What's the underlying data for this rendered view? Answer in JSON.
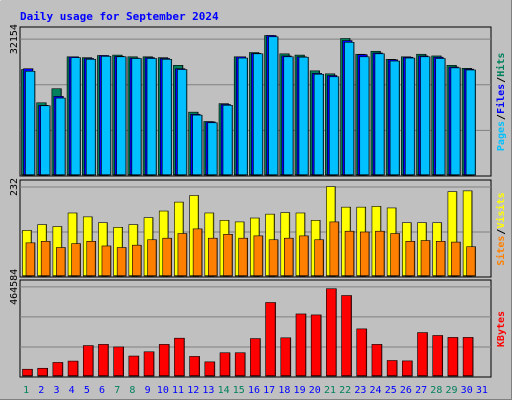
{
  "chart_data": [
    {
      "type": "bar",
      "panel": "hits-files-pages",
      "title": "Daily usage for September 2024",
      "ymax_label": "32154",
      "ylabel_parts": [
        "Pages",
        "Files",
        "Hits"
      ],
      "ylim": [
        0,
        35000
      ],
      "categories": [
        "1",
        "2",
        "3",
        "4",
        "5",
        "6",
        "7",
        "8",
        "9",
        "10",
        "11",
        "12",
        "13",
        "14",
        "15",
        "16",
        "17",
        "18",
        "19",
        "20",
        "21",
        "22",
        "23",
        "24",
        "25",
        "26",
        "27",
        "28",
        "29",
        "30",
        "31"
      ],
      "series": [
        {
          "name": "Hits",
          "values": [
            25000,
            17200,
            20500,
            28000,
            27800,
            28300,
            28400,
            28000,
            28000,
            27800,
            26000,
            15000,
            12800,
            17000,
            28000,
            29000,
            33000,
            28700,
            28400,
            24700,
            24000,
            32300,
            28600,
            29300,
            27400,
            28000,
            28600,
            28200,
            26000,
            25300,
            0
          ]
        },
        {
          "name": "Files",
          "values": [
            25200,
            16600,
            18700,
            28000,
            27600,
            28300,
            28100,
            27700,
            27800,
            27600,
            25200,
            14500,
            12700,
            16800,
            28000,
            28800,
            33000,
            28200,
            28000,
            24100,
            23600,
            31800,
            28500,
            28900,
            27300,
            27900,
            28200,
            27900,
            25600,
            25100,
            0
          ]
        },
        {
          "name": "Pages",
          "values": [
            24600,
            16500,
            18300,
            27800,
            27400,
            28100,
            28000,
            27600,
            27600,
            27400,
            25000,
            14300,
            12500,
            16600,
            27700,
            28700,
            32700,
            28000,
            27900,
            23900,
            23300,
            31400,
            28000,
            28700,
            27000,
            27700,
            28000,
            27600,
            25400,
            24900,
            0
          ]
        }
      ]
    },
    {
      "type": "bar",
      "panel": "visits-sites",
      "ymax_label": "232",
      "ylabel_parts": [
        "Sites",
        "Visits"
      ],
      "ylim": [
        0,
        250
      ],
      "categories": [
        "1",
        "2",
        "3",
        "4",
        "5",
        "6",
        "7",
        "8",
        "9",
        "10",
        "11",
        "12",
        "13",
        "14",
        "15",
        "16",
        "17",
        "18",
        "19",
        "20",
        "21",
        "22",
        "23",
        "24",
        "25",
        "26",
        "27",
        "28",
        "29",
        "30",
        "31"
      ],
      "series": [
        {
          "name": "Visits",
          "values": [
            120,
            135,
            130,
            165,
            155,
            140,
            128,
            135,
            153,
            170,
            193,
            210,
            165,
            146,
            142,
            152,
            162,
            166,
            165,
            146,
            233,
            180,
            180,
            182,
            178,
            140,
            140,
            140,
            220,
            222,
            0
          ]
        },
        {
          "name": "Sites",
          "values": [
            88,
            92,
            76,
            86,
            92,
            80,
            76,
            82,
            96,
            100,
            112,
            124,
            100,
            110,
            100,
            106,
            96,
            100,
            106,
            96,
            142,
            118,
            116,
            118,
            112,
            92,
            94,
            92,
            90,
            78,
            0
          ]
        }
      ]
    },
    {
      "type": "bar",
      "panel": "kbytes",
      "ymax_label": "464584",
      "ylabel_parts": [
        "KBytes"
      ],
      "ylim": [
        0,
        500000
      ],
      "categories": [
        "1",
        "2",
        "3",
        "4",
        "5",
        "6",
        "7",
        "8",
        "9",
        "10",
        "11",
        "12",
        "13",
        "14",
        "15",
        "16",
        "17",
        "18",
        "19",
        "20",
        "21",
        "22",
        "23",
        "24",
        "25",
        "26",
        "27",
        "28",
        "29",
        "30",
        "31"
      ],
      "series": [
        {
          "name": "KBytes",
          "values": [
            40000,
            45000,
            75000,
            82000,
            162000,
            168000,
            155000,
            108000,
            130000,
            168000,
            200000,
            106000,
            78000,
            125000,
            125000,
            198000,
            384000,
            202000,
            325000,
            320000,
            455000,
            420000,
            248000,
            168000,
            85000,
            83000,
            229000,
            214000,
            204000,
            204000,
            0
          ]
        }
      ]
    }
  ],
  "x_labels": [
    "1",
    "2",
    "3",
    "4",
    "5",
    "6",
    "7",
    "8",
    "9",
    "10",
    "11",
    "12",
    "13",
    "14",
    "15",
    "16",
    "17",
    "18",
    "19",
    "20",
    "21",
    "22",
    "23",
    "24",
    "25",
    "26",
    "27",
    "28",
    "29",
    "30",
    "31"
  ],
  "weekend_days": [
    1,
    7,
    8,
    14,
    15,
    21,
    22,
    28,
    29
  ],
  "colors": {
    "hits": "#00805c",
    "files": "#0000ff",
    "pages": "#00c0ff",
    "visits": "#ffff00",
    "sites": "#ff8000",
    "kbytes": "#ff0000",
    "title": "#0000ff",
    "weekend_label": "#00805c",
    "weekday_label": "#0000ff",
    "panel_bg": "#c0c0c0",
    "frame_bg": "#c0c0c0"
  }
}
